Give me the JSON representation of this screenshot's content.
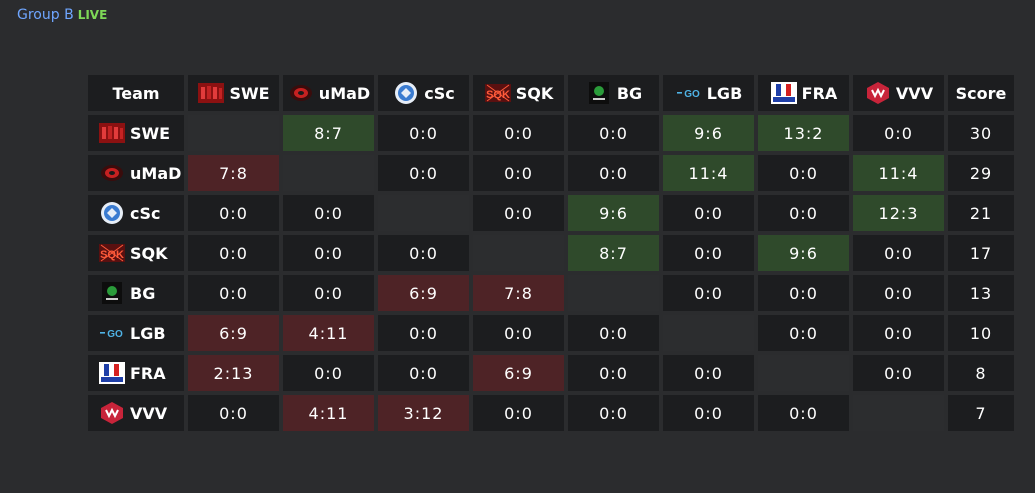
{
  "header": {
    "group_title": "Group B",
    "status": "LIVE"
  },
  "table": {
    "team_header": "Team",
    "score_header": "Score",
    "teams": [
      {
        "name": "SWE",
        "logo": "swe-logo-icon",
        "score": "30",
        "results": [
          "",
          "8:7",
          "0:0",
          "0:0",
          "0:0",
          "9:6",
          "13:2",
          "0:0"
        ],
        "status": [
          "self",
          "win",
          "draw",
          "draw",
          "draw",
          "win",
          "win",
          "draw"
        ]
      },
      {
        "name": "uMaD",
        "logo": "umad-logo-icon",
        "score": "29",
        "results": [
          "7:8",
          "",
          "0:0",
          "0:0",
          "0:0",
          "11:4",
          "0:0",
          "11:4"
        ],
        "status": [
          "loss",
          "self",
          "draw",
          "draw",
          "draw",
          "win",
          "draw",
          "win"
        ]
      },
      {
        "name": "cSc",
        "logo": "csc-logo-icon",
        "score": "21",
        "results": [
          "0:0",
          "0:0",
          "",
          "0:0",
          "9:6",
          "0:0",
          "0:0",
          "12:3"
        ],
        "status": [
          "draw",
          "draw",
          "self",
          "draw",
          "win",
          "draw",
          "draw",
          "win"
        ]
      },
      {
        "name": "SQK",
        "logo": "sqk-logo-icon",
        "score": "17",
        "results": [
          "0:0",
          "0:0",
          "0:0",
          "",
          "8:7",
          "0:0",
          "9:6",
          "0:0"
        ],
        "status": [
          "draw",
          "draw",
          "draw",
          "self",
          "win",
          "draw",
          "win",
          "draw"
        ]
      },
      {
        "name": "BG",
        "logo": "bg-logo-icon",
        "score": "13",
        "results": [
          "0:0",
          "0:0",
          "6:9",
          "7:8",
          "",
          "0:0",
          "0:0",
          "0:0"
        ],
        "status": [
          "draw",
          "draw",
          "loss",
          "loss",
          "self",
          "draw",
          "draw",
          "draw"
        ]
      },
      {
        "name": "LGB",
        "logo": "lgb-logo-icon",
        "score": "10",
        "results": [
          "6:9",
          "4:11",
          "0:0",
          "0:0",
          "0:0",
          "",
          "0:0",
          "0:0"
        ],
        "status": [
          "loss",
          "loss",
          "draw",
          "draw",
          "draw",
          "self",
          "draw",
          "draw"
        ]
      },
      {
        "name": "FRA",
        "logo": "fra-logo-icon",
        "score": "8",
        "results": [
          "2:13",
          "0:0",
          "0:0",
          "6:9",
          "0:0",
          "0:0",
          "",
          "0:0"
        ],
        "status": [
          "loss",
          "draw",
          "draw",
          "loss",
          "draw",
          "draw",
          "self",
          "draw"
        ]
      },
      {
        "name": "VVV",
        "logo": "vvv-logo-icon",
        "score": "7",
        "results": [
          "0:0",
          "4:11",
          "3:12",
          "0:0",
          "0:0",
          "0:0",
          "0:0",
          ""
        ],
        "status": [
          "draw",
          "loss",
          "loss",
          "draw",
          "draw",
          "draw",
          "draw",
          "self"
        ]
      }
    ]
  },
  "colors": {
    "background": "#2b2c2e",
    "cell": "#1c1d1f",
    "win": "#2f4a2b",
    "loss": "#4e2326",
    "title": "#6fa6ff",
    "live": "#7ed957"
  }
}
